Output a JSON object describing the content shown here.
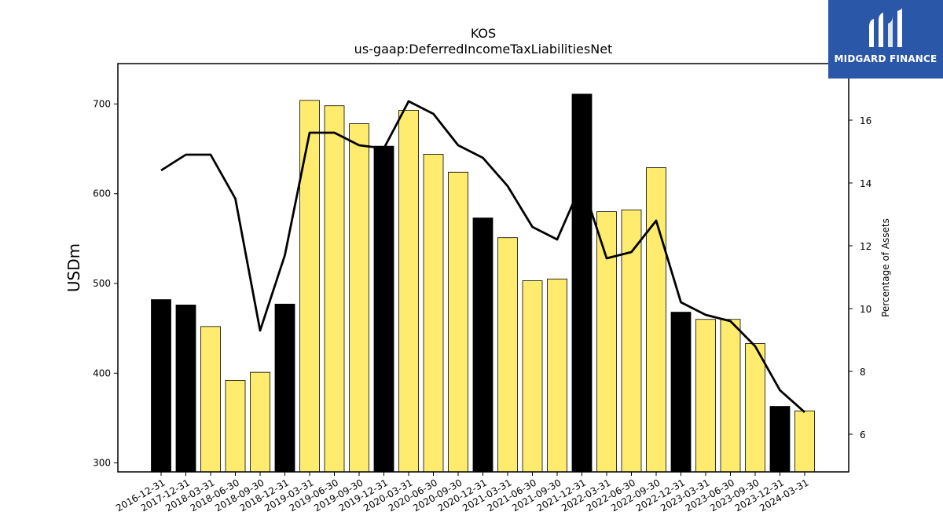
{
  "chart_data": {
    "type": "bar",
    "title": "KOS",
    "subtitle": "us-gaap:DeferredIncomeTaxLiabilitiesNet",
    "ylabel": "USDm",
    "y2label": "Percentage of Assets",
    "ylim": [
      290,
      745
    ],
    "y2lim": [
      4.8,
      17.8
    ],
    "yticks": [
      300,
      400,
      500,
      600,
      700
    ],
    "y2ticks": [
      6,
      8,
      10,
      12,
      14,
      16
    ],
    "categories": [
      "2016-12-31",
      "2017-12-31",
      "2018-03-31",
      "2018-06-30",
      "2018-09-30",
      "2018-12-31",
      "2019-03-31",
      "2019-06-30",
      "2019-09-30",
      "2019-12-31",
      "2020-03-31",
      "2020-06-30",
      "2020-09-30",
      "2020-12-31",
      "2021-03-31",
      "2021-06-30",
      "2021-09-30",
      "2021-12-31",
      "2022-03-31",
      "2022-06-30",
      "2022-09-30",
      "2022-12-31",
      "2023-03-31",
      "2023-06-30",
      "2023-09-30",
      "2023-12-31",
      "2024-03-31"
    ],
    "series": [
      {
        "type": "bar",
        "values": [
          482,
          476,
          452,
          392,
          401,
          477,
          704,
          698,
          678,
          653,
          693,
          644,
          624,
          573,
          551,
          503,
          505,
          711,
          580,
          582,
          629,
          468,
          460,
          460,
          433,
          363,
          358
        ],
        "colors": [
          "#000000",
          "#000000",
          "#ffec6e",
          "#ffec6e",
          "#ffec6e",
          "#000000",
          "#ffec6e",
          "#ffec6e",
          "#ffec6e",
          "#000000",
          "#ffec6e",
          "#ffec6e",
          "#ffec6e",
          "#000000",
          "#ffec6e",
          "#ffec6e",
          "#ffec6e",
          "#000000",
          "#ffec6e",
          "#ffec6e",
          "#ffec6e",
          "#000000",
          "#ffec6e",
          "#ffec6e",
          "#ffec6e",
          "#000000",
          "#ffec6e"
        ]
      },
      {
        "type": "line",
        "axis": "right",
        "values": [
          14.4,
          14.9,
          14.9,
          13.5,
          9.3,
          11.7,
          15.6,
          15.6,
          15.2,
          15.1,
          16.6,
          16.2,
          15.2,
          14.8,
          13.9,
          12.6,
          12.2,
          14.0,
          11.6,
          11.8,
          12.8,
          10.2,
          9.8,
          9.6,
          8.8,
          7.4,
          6.7
        ],
        "color": "#000000"
      }
    ]
  },
  "logo": {
    "text": "MIDGARD FINANCE",
    "background": "#2b57a8"
  }
}
